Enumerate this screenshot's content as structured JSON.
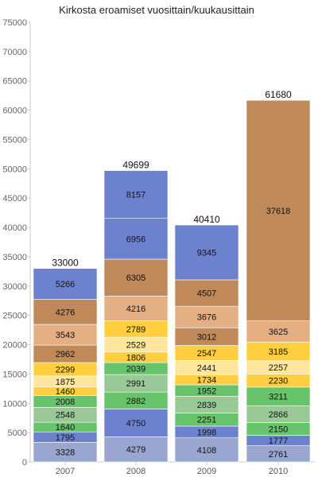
{
  "chart_data": {
    "type": "bar",
    "stacked": true,
    "title": "Kirkosta eroamiset vuosittain/kuukausittain",
    "xlabel": "",
    "ylabel": "",
    "categories": [
      "2007",
      "2008",
      "2009",
      "2010"
    ],
    "ylim": [
      0,
      75000
    ],
    "yticks": [
      0,
      5000,
      10000,
      15000,
      20000,
      25000,
      30000,
      35000,
      40000,
      45000,
      50000,
      55000,
      60000,
      65000,
      70000,
      75000
    ],
    "grid": false,
    "totals": [
      33000,
      49699,
      40410,
      61680
    ],
    "series": [
      {
        "color": "#9ba6d0",
        "values": [
          3328,
          4279,
          4108,
          2761
        ]
      },
      {
        "color": "#6d82cf",
        "values": [
          1795,
          4750,
          1998,
          1777
        ]
      },
      {
        "color": "#67c46b",
        "values": [
          1640,
          2882,
          2251,
          2150
        ]
      },
      {
        "color": "#98c997",
        "values": [
          2548,
          2991,
          2839,
          2866
        ]
      },
      {
        "color": "#67c46b",
        "values": [
          2008,
          2039,
          1952,
          3211
        ]
      },
      {
        "color": "#ffcf3f",
        "values": [
          1460,
          1806,
          1734,
          2230
        ]
      },
      {
        "color": "#fee69c",
        "values": [
          1875,
          2529,
          2441,
          2257
        ]
      },
      {
        "color": "#ffcf3f",
        "values": [
          2299,
          2789,
          2547,
          3185
        ]
      },
      {
        "color": "#c0895a",
        "values": [
          2962,
          null,
          3012,
          null
        ]
      },
      {
        "color": "#e4b083",
        "values": [
          3543,
          4216,
          3676,
          3625
        ]
      },
      {
        "color": "#c0895a",
        "values": [
          4276,
          6305,
          4507,
          37618
        ]
      },
      {
        "color": "#6d82cf",
        "values": [
          5266,
          6956,
          9345,
          null
        ]
      },
      {
        "color": "#6d82cf",
        "values": [
          null,
          8157,
          null,
          null
        ]
      }
    ]
  }
}
